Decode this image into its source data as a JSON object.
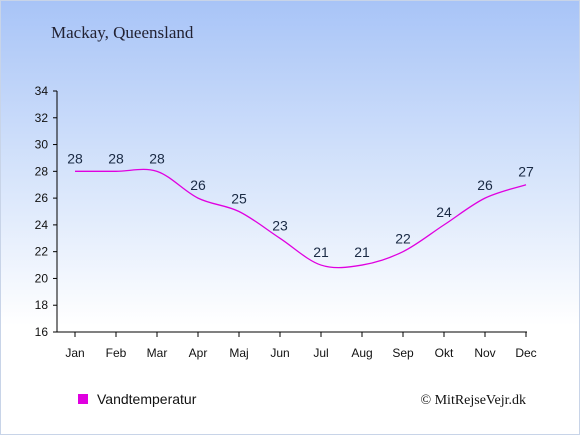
{
  "header": {
    "title": "Mackay, Queensland"
  },
  "legend": {
    "label": "Vandtemperatur",
    "placement": "bottom-left"
  },
  "footer": {
    "copyright": "© MitRejseVejr.dk"
  },
  "colors": {
    "series": "#e000e0",
    "axis": "#000000",
    "label_text": "#1a2a44",
    "background_top": "#a8c4f7"
  },
  "chart_data": {
    "type": "line",
    "title": "Mackay, Queensland",
    "xlabel": "",
    "ylabel": "",
    "categories": [
      "Jan",
      "Feb",
      "Mar",
      "Apr",
      "Maj",
      "Jun",
      "Jul",
      "Aug",
      "Sep",
      "Okt",
      "Nov",
      "Dec"
    ],
    "series": [
      {
        "name": "Vandtemperatur",
        "values": [
          28,
          28,
          28,
          26,
          25,
          23,
          21,
          21,
          22,
          24,
          26,
          27
        ]
      }
    ],
    "data_labels": [
      "28",
      "28",
      "28",
      "26",
      "25",
      "23",
      "21",
      "21",
      "22",
      "24",
      "26",
      "27"
    ],
    "ylim": [
      16,
      34
    ],
    "yticks": [
      16,
      18,
      20,
      22,
      24,
      26,
      28,
      30,
      32,
      34
    ],
    "grid": false,
    "legend_position": "bottom-left"
  }
}
